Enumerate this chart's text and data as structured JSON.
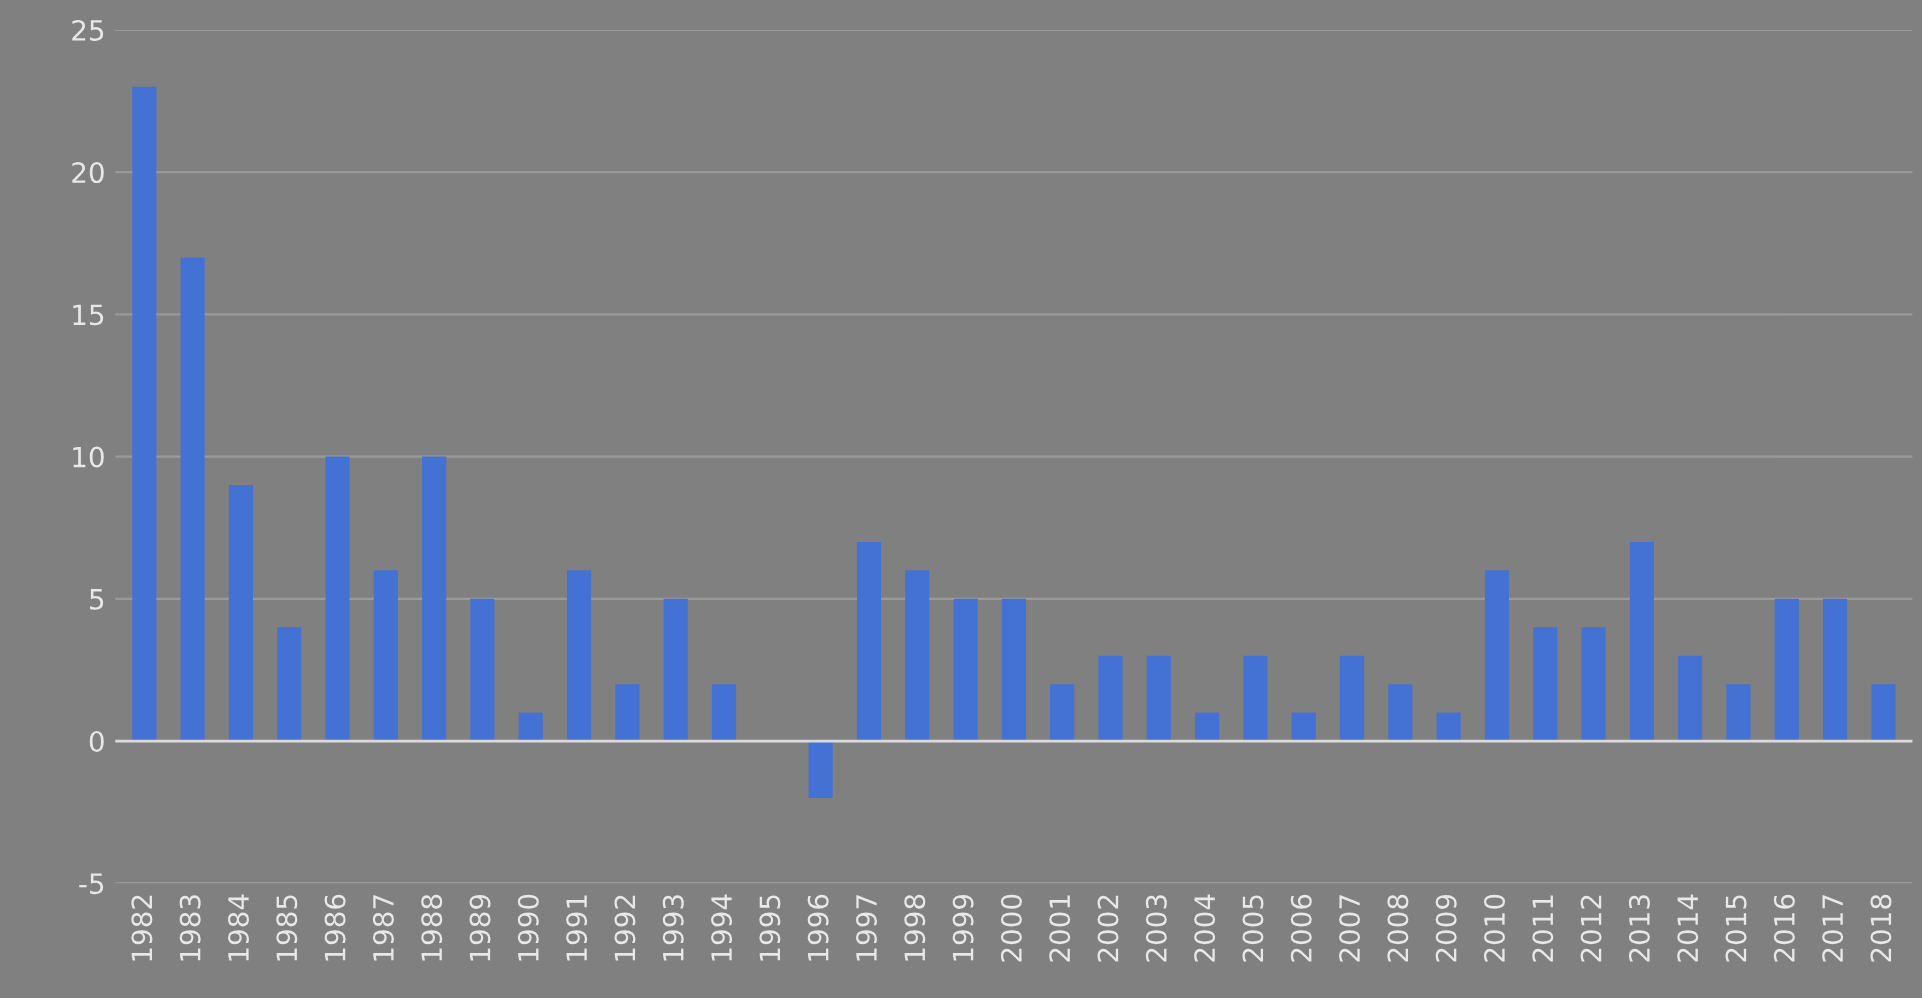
{
  "chart_data": {
    "type": "bar",
    "categories": [
      "1982",
      "1983",
      "1984",
      "1985",
      "1986",
      "1987",
      "1988",
      "1989",
      "1990",
      "1991",
      "1992",
      "1993",
      "1994",
      "1995",
      "1996",
      "1997",
      "1998",
      "1999",
      "2000",
      "2001",
      "2002",
      "2003",
      "2004",
      "2005",
      "2006",
      "2007",
      "2008",
      "2009",
      "2010",
      "2011",
      "2012",
      "2013",
      "2014",
      "2015",
      "2016",
      "2017",
      "2018"
    ],
    "values": [
      23,
      17,
      9,
      4,
      10,
      6,
      10,
      5,
      1,
      6,
      2,
      5,
      2,
      0,
      -2,
      7,
      6,
      5,
      5,
      2,
      3,
      3,
      1,
      3,
      1,
      3,
      2,
      1,
      6,
      4,
      4,
      7,
      3,
      2,
      5,
      5,
      2
    ],
    "color": "#4472d4",
    "ylim": [
      -5,
      25
    ],
    "yticks": [
      -5,
      0,
      5,
      10,
      15,
      20,
      25
    ],
    "grid": "y"
  }
}
